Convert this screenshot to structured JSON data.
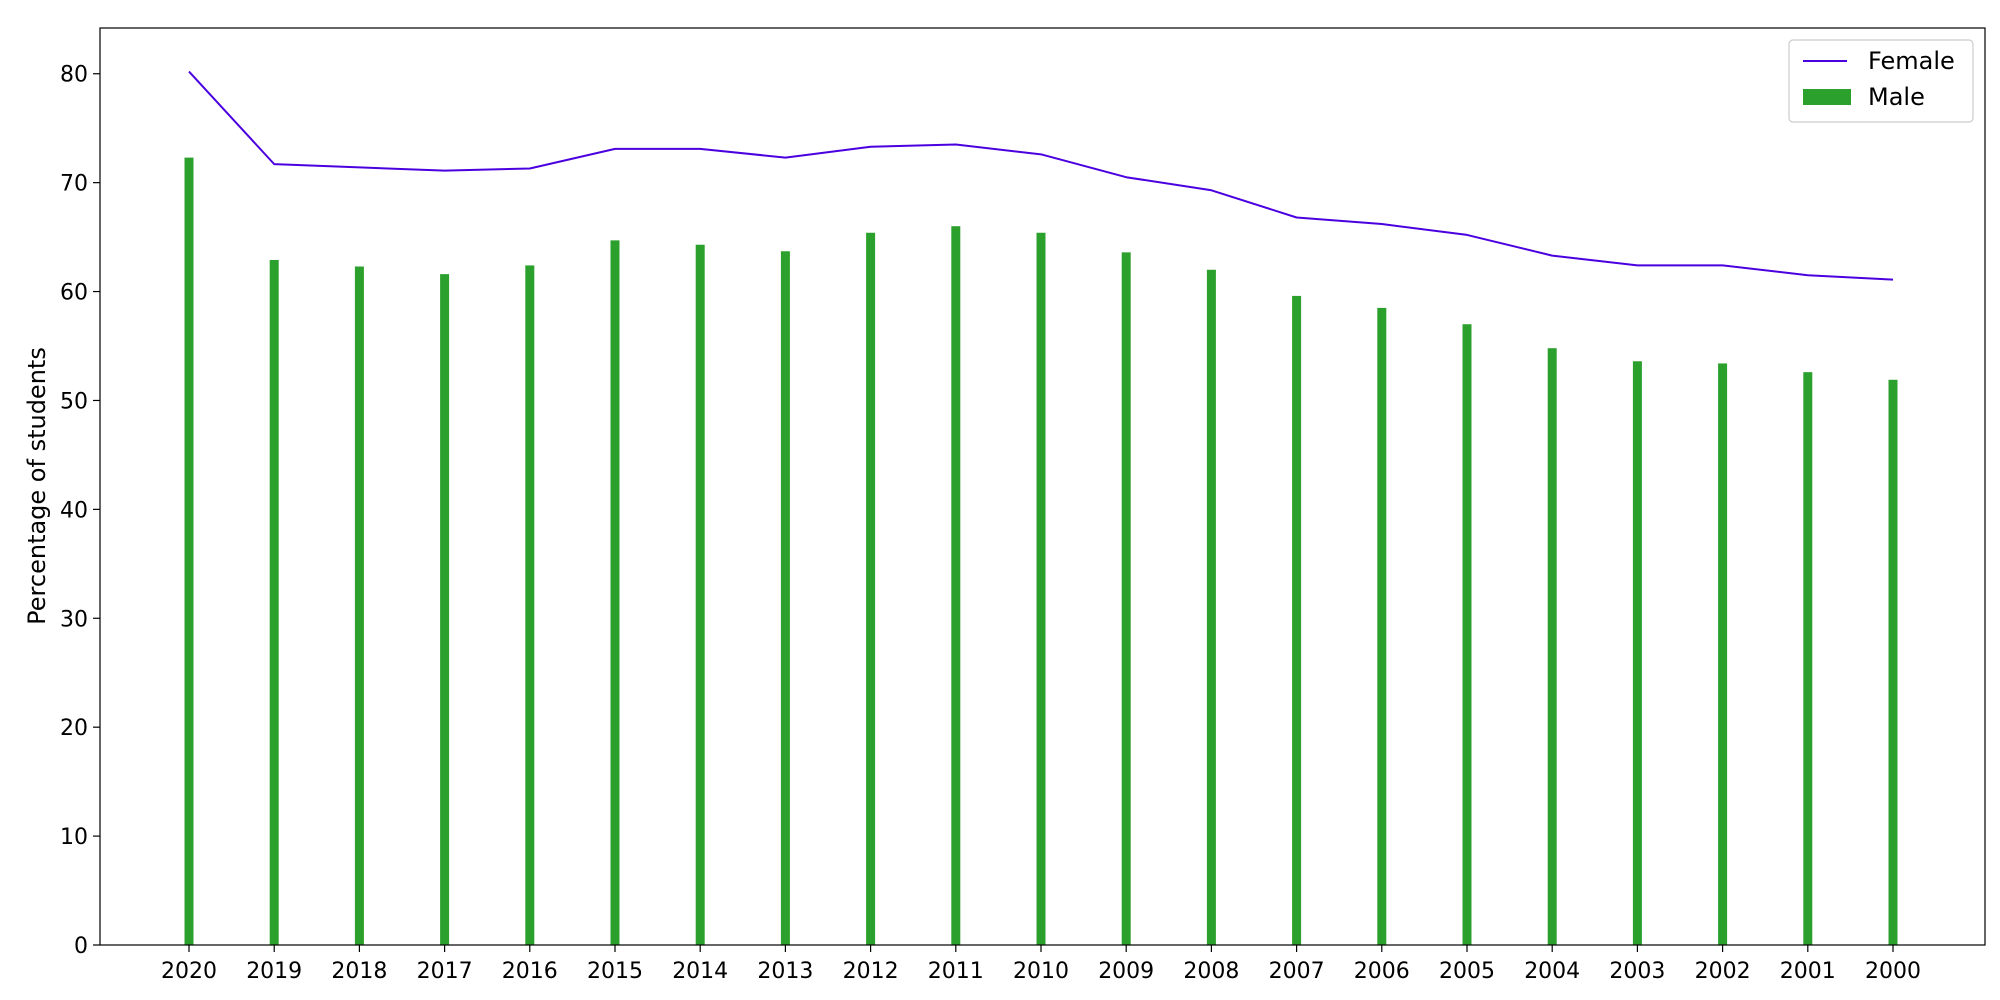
{
  "chart_data": {
    "type": "bar",
    "categories": [
      "2020",
      "2019",
      "2018",
      "2017",
      "2016",
      "2015",
      "2014",
      "2013",
      "2012",
      "2011",
      "2010",
      "2009",
      "2008",
      "2007",
      "2006",
      "2005",
      "2004",
      "2003",
      "2002",
      "2001",
      "2000"
    ],
    "series": [
      {
        "name": "Female",
        "type": "line",
        "color": "#4b00e0",
        "values": [
          80.2,
          71.7,
          71.4,
          71.1,
          71.3,
          73.1,
          73.1,
          72.3,
          73.3,
          73.5,
          72.6,
          70.5,
          69.3,
          66.8,
          66.2,
          65.2,
          63.3,
          62.4,
          62.4,
          61.5,
          61.1
        ]
      },
      {
        "name": "Male",
        "type": "bar",
        "color": "#2ca02c",
        "values": [
          72.3,
          62.9,
          62.3,
          61.6,
          62.4,
          64.7,
          64.3,
          63.7,
          65.4,
          66.0,
          65.4,
          63.6,
          62.0,
          59.6,
          58.5,
          57.0,
          54.8,
          53.6,
          53.4,
          52.6,
          51.9
        ]
      }
    ],
    "title": "",
    "xlabel": "",
    "ylabel": "Percentage of students",
    "ylim": [
      0,
      84.2
    ],
    "yticks": [
      0,
      10,
      20,
      30,
      40,
      50,
      60,
      70,
      80
    ],
    "grid": false,
    "legend_position": "upper right"
  }
}
